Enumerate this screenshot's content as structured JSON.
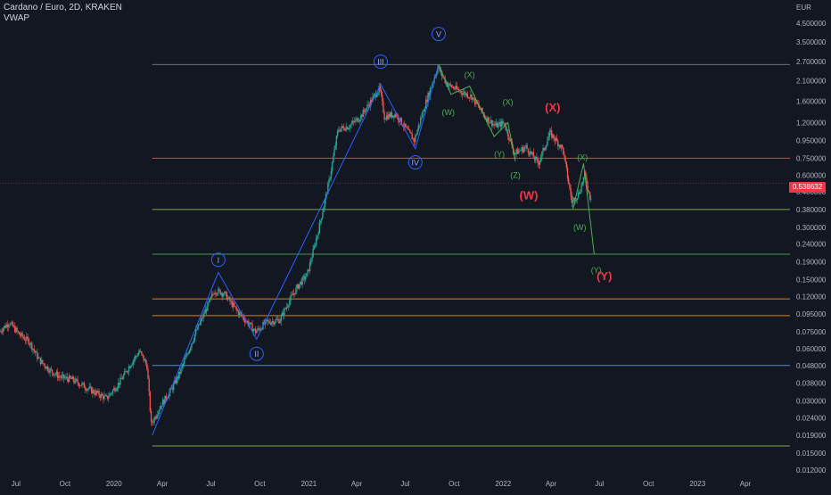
{
  "header": {
    "title": "Cardano / Euro, 2D, KRAKEN",
    "indicator": "VWAP"
  },
  "chart_data": {
    "type": "candlestick",
    "currency_label": "EUR",
    "y_scale": "log",
    "ylim": [
      0.0113,
      5.7
    ],
    "y_ticks": [
      "4.500000",
      "3.500000",
      "2.700000",
      "2.100000",
      "1.600000",
      "1.200000",
      "0.950000",
      "0.750000",
      "0.600000",
      "0.480000",
      "0.380000",
      "0.300000",
      "0.240000",
      "0.190000",
      "0.150000",
      "0.120000",
      "0.095000",
      "0.075000",
      "0.060000",
      "0.048000",
      "0.038000",
      "0.030000",
      "0.024000",
      "0.019000",
      "0.015000",
      "0.012000"
    ],
    "x_ticks": [
      "Jul",
      "Oct",
      "2020",
      "Apr",
      "Jul",
      "Oct",
      "2021",
      "Apr",
      "Jul",
      "Oct",
      "2022",
      "Apr",
      "Jul",
      "Oct",
      "2023",
      "Apr"
    ],
    "last_price": "0.538632",
    "colors": {
      "background": "#131722",
      "up": "#26a69a",
      "down": "#ef5350",
      "wave_primary": "#2962ff",
      "wave_secondary": "#4caf50",
      "wave_major": "#f23645"
    },
    "price_path": [
      [
        "2019-06-01",
        0.075
      ],
      [
        "2019-06-20",
        0.085
      ],
      [
        "2019-07-10",
        0.072
      ],
      [
        "2019-07-28",
        0.066
      ],
      [
        "2019-08-15",
        0.052
      ],
      [
        "2019-09-05",
        0.045
      ],
      [
        "2019-09-25",
        0.041
      ],
      [
        "2019-10-15",
        0.04
      ],
      [
        "2019-11-05",
        0.037
      ],
      [
        "2019-11-25",
        0.034
      ],
      [
        "2019-12-20",
        0.031
      ],
      [
        "2020-01-15",
        0.039
      ],
      [
        "2020-02-05",
        0.05
      ],
      [
        "2020-02-20",
        0.058
      ],
      [
        "2020-03-05",
        0.048
      ],
      [
        "2020-03-13",
        0.022
      ],
      [
        "2020-03-30",
        0.028
      ],
      [
        "2020-04-20",
        0.035
      ],
      [
        "2020-05-05",
        0.043
      ],
      [
        "2020-06-05",
        0.075
      ],
      [
        "2020-07-10",
        0.13
      ],
      [
        "2020-07-28",
        0.125
      ],
      [
        "2020-08-20",
        0.1
      ],
      [
        "2020-09-10",
        0.085
      ],
      [
        "2020-09-25",
        0.075
      ],
      [
        "2020-10-15",
        0.085
      ],
      [
        "2020-11-10",
        0.088
      ],
      [
        "2020-11-25",
        0.11
      ],
      [
        "2020-12-15",
        0.14
      ],
      [
        "2020-12-31",
        0.16
      ],
      [
        "2021-01-20",
        0.28
      ],
      [
        "2021-02-10",
        0.55
      ],
      [
        "2021-02-27",
        1.1
      ],
      [
        "2021-03-20",
        1.15
      ],
      [
        "2021-04-10",
        1.3
      ],
      [
        "2021-05-16",
        1.9
      ],
      [
        "2021-05-25",
        1.3
      ],
      [
        "2021-06-15",
        1.35
      ],
      [
        "2021-07-20",
        0.95
      ],
      [
        "2021-08-10",
        1.55
      ],
      [
        "2021-09-02",
        2.5
      ],
      [
        "2021-09-20",
        2.0
      ],
      [
        "2021-10-10",
        1.85
      ],
      [
        "2021-11-05",
        1.7
      ],
      [
        "2021-11-30",
        1.3
      ],
      [
        "2021-12-20",
        1.15
      ],
      [
        "2022-01-05",
        1.2
      ],
      [
        "2022-01-24",
        0.8
      ],
      [
        "2022-02-15",
        0.87
      ],
      [
        "2022-03-10",
        0.7
      ],
      [
        "2022-04-01",
        1.05
      ],
      [
        "2022-04-25",
        0.85
      ],
      [
        "2022-05-12",
        0.42
      ],
      [
        "2022-05-25",
        0.47
      ],
      [
        "2022-06-05",
        0.6
      ],
      [
        "2022-06-15",
        0.45
      ]
    ],
    "horizontal_levels": [
      {
        "value": 2.6,
        "color": "#787b86"
      },
      {
        "value": 0.75,
        "color": "#f7525f"
      },
      {
        "value": 0.38,
        "color": "#8bc34a"
      },
      {
        "value": 0.21,
        "color": "#4caf50"
      },
      {
        "value": 0.116,
        "color": "#ff9800"
      },
      {
        "value": 0.093,
        "color": "#ff9800"
      },
      {
        "value": 0.048,
        "color": "#5b9cf6"
      },
      {
        "value": 0.0165,
        "color": "#8bc34a"
      }
    ],
    "primary_wave_path": [
      [
        "2020-03-13",
        0.019
      ],
      [
        "2020-07-15",
        0.165
      ],
      [
        "2020-09-25",
        0.068
      ],
      [
        "2021-05-16",
        2.0
      ],
      [
        "2021-07-20",
        0.85
      ],
      [
        "2021-09-02",
        2.6
      ]
    ],
    "wave_labels": [
      {
        "text": "I",
        "date": "2020-07-15",
        "value": 0.195,
        "group": "primary"
      },
      {
        "text": "II",
        "date": "2020-09-25",
        "value": 0.056,
        "group": "primary"
      },
      {
        "text": "III",
        "date": "2021-05-16",
        "value": 2.7,
        "group": "primary"
      },
      {
        "text": "IV",
        "date": "2021-07-20",
        "value": 0.71,
        "group": "primary"
      },
      {
        "text": "V",
        "date": "2021-09-02",
        "value": 3.9,
        "group": "primary"
      },
      {
        "text": "(W)",
        "date": "2021-09-20",
        "value": 1.38,
        "group": "secondary"
      },
      {
        "text": "(X)",
        "date": "2021-10-30",
        "value": 2.27,
        "group": "secondary"
      },
      {
        "text": "(X)",
        "date": "2022-01-10",
        "value": 1.58,
        "group": "secondary"
      },
      {
        "text": "(Y)",
        "date": "2021-12-25",
        "value": 0.79,
        "group": "secondary"
      },
      {
        "text": "(Z)",
        "date": "2022-01-24",
        "value": 0.6,
        "group": "secondary"
      },
      {
        "text": "(X)",
        "date": "2022-05-30",
        "value": 0.76,
        "group": "secondary"
      },
      {
        "text": "(W)",
        "date": "2022-05-25",
        "value": 0.3,
        "group": "secondary"
      },
      {
        "text": "(Y)",
        "date": "2022-06-25",
        "value": 0.17,
        "group": "secondary"
      },
      {
        "text": "(X)",
        "date": "2022-04-04",
        "value": 1.48,
        "group": "major"
      },
      {
        "text": "(W)",
        "date": "2022-02-18",
        "value": 0.46,
        "group": "major"
      },
      {
        "text": "(Y)",
        "date": "2022-07-10",
        "value": 0.158,
        "group": "major"
      }
    ],
    "secondary_wave_paths": [
      [
        [
          "2021-09-02",
          2.6
        ],
        [
          "2021-09-25",
          1.75
        ],
        [
          "2021-10-30",
          1.95
        ],
        [
          "2021-12-15",
          1.0
        ],
        [
          "2022-01-10",
          1.2
        ],
        [
          "2022-01-24",
          0.72
        ]
      ],
      [
        [
          "2022-05-12",
          0.38
        ],
        [
          "2022-06-01",
          0.7
        ],
        [
          "2022-06-21",
          0.21
        ]
      ]
    ]
  }
}
